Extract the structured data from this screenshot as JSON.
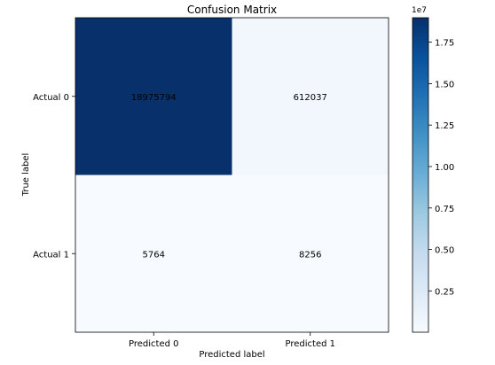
{
  "chart_data": {
    "type": "heatmap",
    "title": "Confusion Matrix",
    "xlabel": "Predicted label",
    "ylabel": "True label",
    "x_categories": [
      "Predicted 0",
      "Predicted 1"
    ],
    "y_categories": [
      "Actual 0",
      "Actual 1"
    ],
    "values": [
      [
        18975794,
        612037
      ],
      [
        5764,
        8256
      ]
    ],
    "cell_labels": [
      [
        "18975794",
        "612037"
      ],
      [
        "5764",
        "8256"
      ]
    ],
    "colormap": "Blues",
    "colorbar": {
      "range": [
        5764,
        18975794
      ],
      "multiplier_label": "1e7",
      "ticks": [
        {
          "value": 2500000,
          "label": "0.25"
        },
        {
          "value": 5000000,
          "label": "0.50"
        },
        {
          "value": 7500000,
          "label": "0.75"
        },
        {
          "value": 10000000,
          "label": "1.00"
        },
        {
          "value": 12500000,
          "label": "1.25"
        },
        {
          "value": 15000000,
          "label": "1.50"
        },
        {
          "value": 17500000,
          "label": "1.75"
        }
      ]
    },
    "text_colors": {
      "dark": "#ffffff",
      "light": "#000000"
    }
  }
}
